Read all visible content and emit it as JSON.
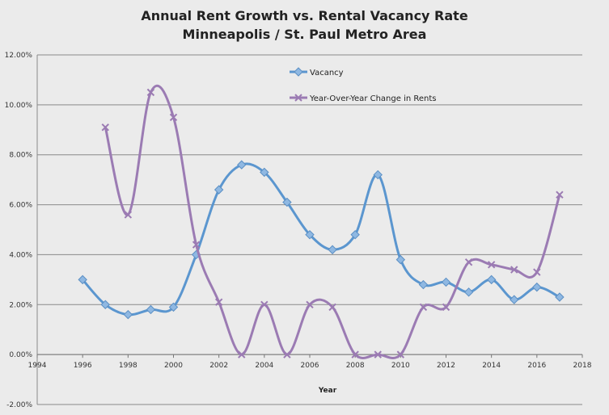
{
  "chart_data": {
    "type": "line",
    "title": [
      "Annual Rent Growth vs. Rental Vacancy Rate",
      "Minneapolis / St. Paul Metro Area"
    ],
    "xlabel": "Year",
    "ylabel": "",
    "xlim": [
      1994,
      2018
    ],
    "ylim": [
      -0.02,
      0.12
    ],
    "xticks": [
      1994,
      1996,
      1998,
      2000,
      2002,
      2004,
      2006,
      2008,
      2010,
      2012,
      2014,
      2016,
      2018
    ],
    "yticks": [
      -0.02,
      0,
      0.02,
      0.04,
      0.06,
      0.08,
      0.1,
      0.12
    ],
    "ytick_labels": [
      "-2.00%",
      "0.00%",
      "2.00%",
      "4.00%",
      "6.00%",
      "8.00%",
      "10.00%",
      "12.00%"
    ],
    "grid": "horizontal",
    "legend_position": "top-center",
    "series": [
      {
        "name": "Vacancy",
        "color": "#5b96cf",
        "marker": "diamond",
        "x": [
          1996,
          1997,
          1998,
          1999,
          2000,
          2001,
          2002,
          2003,
          2004,
          2005,
          2006,
          2007,
          2008,
          2009,
          2010,
          2011,
          2012,
          2013,
          2014,
          2015,
          2016,
          2017
        ],
        "y": [
          0.03,
          0.02,
          0.016,
          0.018,
          0.019,
          0.04,
          0.066,
          0.076,
          0.073,
          0.061,
          0.048,
          0.042,
          0.048,
          0.072,
          0.038,
          0.028,
          0.029,
          0.025,
          0.03,
          0.022,
          0.027,
          0.023
        ]
      },
      {
        "name": "Year-Over-Year Change in Rents",
        "color": "#9b7bb3",
        "marker": "x",
        "x": [
          1997,
          1998,
          1999,
          2000,
          2001,
          2002,
          2003,
          2004,
          2005,
          2006,
          2007,
          2008,
          2009,
          2010,
          2011,
          2012,
          2013,
          2014,
          2015,
          2016,
          2017
        ],
        "y": [
          0.091,
          0.056,
          0.105,
          0.095,
          0.044,
          0.021,
          0.0,
          0.02,
          0.0,
          0.02,
          0.019,
          0.0,
          0.0,
          0.0,
          0.019,
          0.019,
          0.037,
          0.036,
          0.034,
          0.033,
          0.064
        ]
      }
    ]
  }
}
